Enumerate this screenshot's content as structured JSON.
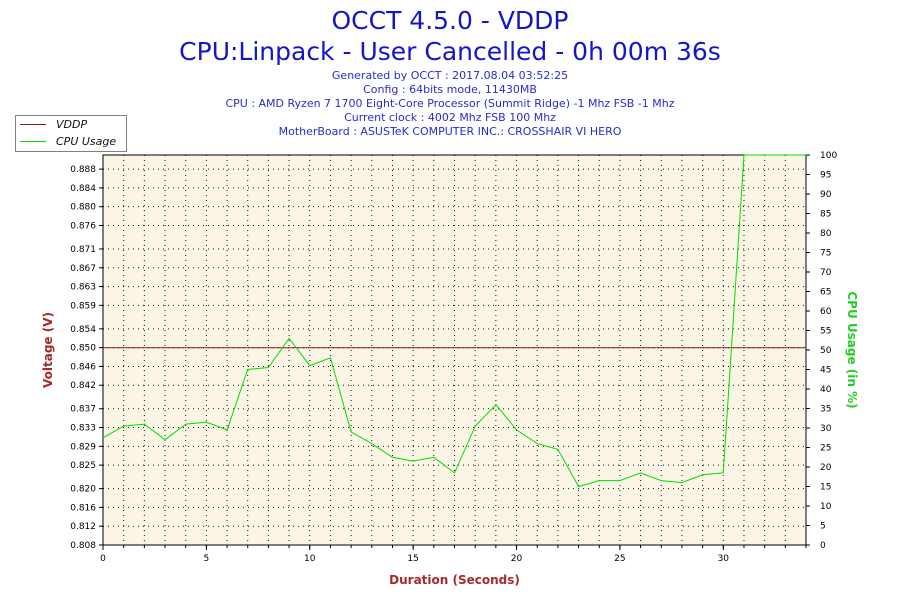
{
  "chart": {
    "title": "OCCT 4.5.0 - VDDP",
    "subtitle": "CPU:Linpack - User Cancelled - 0h 00m 36s",
    "info_lines": [
      "Generated by OCCT : 2017.08.04 03:52:25",
      "Config : 64bits mode, 11430MB",
      "CPU : AMD Ryzen 7 1700 Eight-Core Processor (Summit Ridge) -1 Mhz FSB -1 Mhz",
      "Current clock : 4002 Mhz FSB 100 Mhz",
      "MotherBoard : ASUSTeK COMPUTER INC.: CROSSHAIR VI HERO"
    ]
  },
  "legend": {
    "items": [
      {
        "label": "VDDP",
        "color": "#8b1a1a"
      },
      {
        "label": "CPU Usage",
        "color": "#00dd00"
      }
    ]
  },
  "colors": {
    "plot_background": "#fbf5e6",
    "grid": "#111111",
    "left_axis_label": "#a52a2a",
    "right_axis_label": "#22cc22",
    "x_axis_label": "#a52a2a",
    "vddp_line": "#8b1a1a",
    "cpu_line": "#00dd00"
  },
  "chart_data": {
    "type": "line",
    "xlabel": "Duration (Seconds)",
    "ylabel_left": "Voltage (V)",
    "ylabel_right": "CPU Usage (in %)",
    "xlim": [
      0,
      34
    ],
    "x_ticks": [
      0,
      5,
      10,
      15,
      20,
      25,
      30
    ],
    "ylim_left": [
      0.808,
      0.891
    ],
    "y_ticks_left": [
      0.808,
      0.812,
      0.816,
      0.82,
      0.825,
      0.829,
      0.833,
      0.837,
      0.842,
      0.846,
      0.85,
      0.854,
      0.859,
      0.863,
      0.867,
      0.871,
      0.876,
      0.88,
      0.884,
      0.888
    ],
    "y_tick_labels_left": [
      "0.808",
      "0.812",
      "0.816",
      "0.820",
      "0.825",
      "0.829",
      "0.833",
      "0.837",
      "0.842",
      "0.846",
      "0.850",
      "0.854",
      "0.859",
      "0.863",
      "0.867",
      "0.871",
      "0.876",
      "0.880",
      "0.884",
      "0.888"
    ],
    "ylim_right": [
      0,
      100
    ],
    "y_ticks_right": [
      0,
      5,
      10,
      15,
      20,
      25,
      30,
      35,
      40,
      45,
      50,
      55,
      60,
      65,
      70,
      75,
      80,
      85,
      90,
      95,
      100
    ],
    "grid": true,
    "legend_position": "top-left",
    "series": [
      {
        "name": "VDDP",
        "axis": "left",
        "x": [
          0,
          34
        ],
        "y": [
          0.85,
          0.85
        ]
      },
      {
        "name": "CPU Usage",
        "axis": "right",
        "x": [
          0,
          1,
          2,
          3,
          4,
          5,
          6,
          7,
          8,
          9,
          10,
          11,
          12,
          13,
          14,
          15,
          16,
          17,
          18,
          19,
          20,
          21,
          22,
          23,
          24,
          25,
          26,
          27,
          28,
          29,
          30,
          31,
          32,
          33,
          34
        ],
        "y": [
          27.5,
          30.5,
          31,
          27,
          31,
          31.5,
          29.5,
          45,
          45.5,
          53,
          46,
          48,
          29,
          26,
          22.5,
          21.5,
          22.5,
          18.5,
          30.5,
          36,
          29.5,
          26,
          24.5,
          15,
          16.5,
          16.5,
          18.5,
          16.5,
          16,
          18,
          18.5,
          100,
          100,
          100,
          100
        ]
      }
    ]
  }
}
